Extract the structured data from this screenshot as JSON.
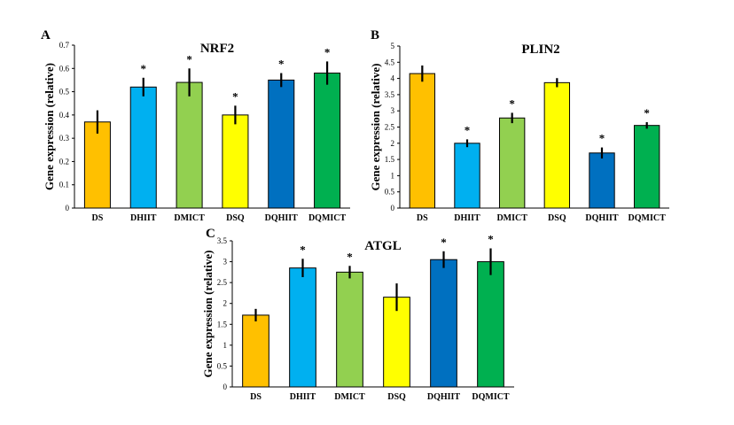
{
  "chart_data": [
    {
      "panel": "A",
      "type": "bar",
      "title": "NRF2",
      "ylabel": "Gene expression (relative)",
      "ylim": [
        0,
        0.7
      ],
      "yticks": [
        "0",
        "0.1",
        "0.2",
        "0.3",
        "0.4",
        "0.5",
        "0.6",
        "0.7"
      ],
      "categories": [
        "DS",
        "DHIIT",
        "DMICT",
        "DSQ",
        "DQHIIT",
        "DQMICT"
      ],
      "values": [
        0.37,
        0.52,
        0.54,
        0.4,
        0.55,
        0.58
      ],
      "errors": [
        0.05,
        0.04,
        0.06,
        0.04,
        0.03,
        0.05
      ],
      "significant": [
        "",
        "*",
        "*",
        "*",
        "*",
        "*"
      ]
    },
    {
      "panel": "B",
      "type": "bar",
      "title": "PLIN2",
      "ylabel": "Gene expression (relative)",
      "ylim": [
        0,
        5
      ],
      "yticks": [
        "0",
        "0.5",
        "1",
        "1.5",
        "2",
        "2.5",
        "3",
        "3.5",
        "4",
        "4.5",
        "5"
      ],
      "categories": [
        "DS",
        "DHIIT",
        "DMICT",
        "DSQ",
        "DQHIIT",
        "DQMICT"
      ],
      "values": [
        4.15,
        2.0,
        2.78,
        3.87,
        1.7,
        2.55
      ],
      "errors": [
        0.25,
        0.12,
        0.16,
        0.14,
        0.17,
        0.1
      ],
      "significant": [
        "",
        "*",
        "*",
        "",
        "*",
        "*"
      ]
    },
    {
      "panel": "C",
      "type": "bar",
      "title": "ATGL",
      "ylabel": "Gene expression (relative)",
      "ylim": [
        0,
        3.5
      ],
      "yticks": [
        "0",
        "0.5",
        "1",
        "1.5",
        "2",
        "2.5",
        "3",
        "3.5"
      ],
      "categories": [
        "DS",
        "DHIIT",
        "DMICT",
        "DSQ",
        "DQHIIT",
        "DQMICT"
      ],
      "values": [
        1.72,
        2.85,
        2.75,
        2.15,
        3.05,
        3.0
      ],
      "errors": [
        0.15,
        0.22,
        0.15,
        0.33,
        0.2,
        0.32
      ],
      "significant": [
        "",
        "*",
        "*",
        "",
        "*",
        "*"
      ]
    }
  ],
  "bar_colors": [
    "#FFC000",
    "#00B0F0",
    "#92D050",
    "#FFFF00",
    "#0070C0",
    "#00B050"
  ]
}
